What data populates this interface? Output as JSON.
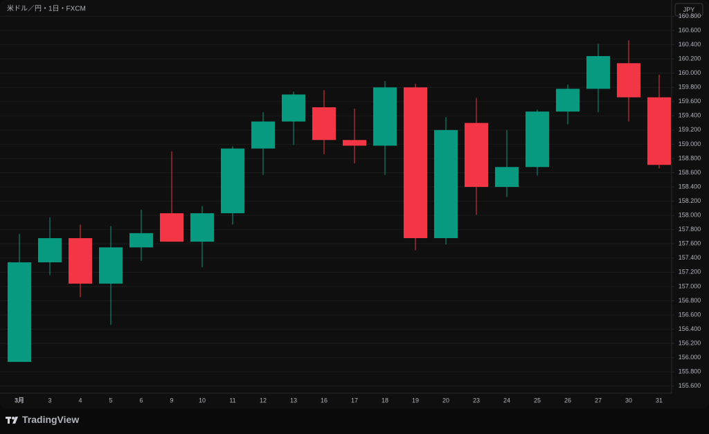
{
  "chart_data": {
    "type": "candlestick",
    "title": "米ドル／円・1日・FXCM",
    "categories": [
      "3月",
      "3",
      "4",
      "5",
      "6",
      "9",
      "10",
      "11",
      "12",
      "13",
      "16",
      "17",
      "18",
      "19",
      "20",
      "23",
      "24",
      "25",
      "26",
      "27",
      "30",
      "31"
    ],
    "open": [
      155.94,
      157.34,
      157.68,
      157.04,
      157.55,
      158.03,
      157.63,
      158.03,
      158.94,
      159.32,
      159.52,
      159.06,
      158.98,
      159.8,
      157.68,
      159.3,
      158.4,
      158.68,
      159.46,
      159.78,
      160.14,
      159.66
    ],
    "high": [
      157.74,
      157.97,
      157.87,
      157.85,
      158.08,
      158.9,
      158.13,
      158.97,
      159.45,
      159.74,
      159.76,
      159.5,
      159.89,
      159.85,
      159.38,
      159.65,
      159.2,
      159.49,
      159.84,
      160.41,
      160.46,
      159.98
    ],
    "low": [
      155.94,
      157.16,
      156.85,
      156.46,
      157.36,
      157.63,
      157.27,
      157.87,
      158.57,
      158.99,
      158.86,
      158.73,
      158.57,
      157.51,
      157.59,
      158.01,
      158.26,
      158.56,
      159.28,
      159.45,
      159.32,
      158.66
    ],
    "close": [
      157.34,
      157.68,
      157.04,
      157.55,
      157.75,
      157.63,
      158.03,
      158.94,
      159.32,
      159.7,
      159.06,
      158.98,
      159.8,
      157.68,
      159.2,
      158.4,
      158.68,
      159.46,
      159.78,
      160.24,
      159.66,
      158.71
    ],
    "up_color": "#089981",
    "down_color": "#f23645",
    "ylim": [
      155.5,
      160.98
    ],
    "yticks": [
      {
        "value": 155.6,
        "label": "155.600"
      },
      {
        "value": 155.8,
        "label": "155.800"
      },
      {
        "value": 156.0,
        "label": "156.000"
      },
      {
        "value": 156.2,
        "label": "156.200"
      },
      {
        "value": 156.4,
        "label": "156.400"
      },
      {
        "value": 156.6,
        "label": "156.600"
      },
      {
        "value": 156.8,
        "label": "156.800"
      },
      {
        "value": 157.0,
        "label": "157.000"
      },
      {
        "value": 157.2,
        "label": "157.200"
      },
      {
        "value": 157.4,
        "label": "157.400"
      },
      {
        "value": 157.6,
        "label": "157.600"
      },
      {
        "value": 157.8,
        "label": "157.800"
      },
      {
        "value": 158.0,
        "label": "158.000"
      },
      {
        "value": 158.2,
        "label": "158.200"
      },
      {
        "value": 158.4,
        "label": "158.400"
      },
      {
        "value": 158.6,
        "label": "158.600"
      },
      {
        "value": 158.8,
        "label": "158.800"
      },
      {
        "value": 159.0,
        "label": "159.000"
      },
      {
        "value": 159.2,
        "label": "159.200"
      },
      {
        "value": 159.4,
        "label": "159.400"
      },
      {
        "value": 159.6,
        "label": "159.600"
      },
      {
        "value": 159.8,
        "label": "159.800"
      },
      {
        "value": 160.0,
        "label": "160.000"
      },
      {
        "value": 160.2,
        "label": "160.200"
      },
      {
        "value": 160.4,
        "label": "160.400"
      },
      {
        "value": 160.6,
        "label": "160.600"
      },
      {
        "value": 160.8,
        "label": "160.800"
      }
    ],
    "grid": true
  },
  "ui": {
    "currency": "JPY",
    "brand": "TradingView"
  }
}
